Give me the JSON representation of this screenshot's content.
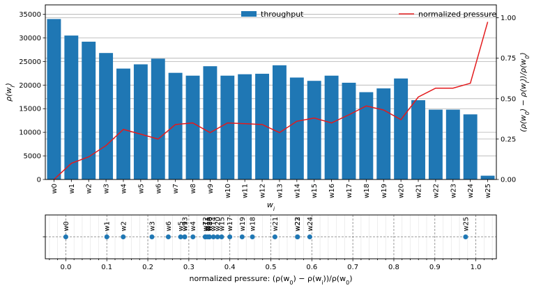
{
  "chart_data": [
    {
      "type": "bar",
      "categories": [
        "w0",
        "w1",
        "w2",
        "w3",
        "w4",
        "w5",
        "w6",
        "w7",
        "w8",
        "w9",
        "w10",
        "w11",
        "w12",
        "w13",
        "w14",
        "w15",
        "w16",
        "w17",
        "w18",
        "w19",
        "w20",
        "w21",
        "w22",
        "w23",
        "w24",
        "w25"
      ],
      "series": [
        {
          "name": "throughput",
          "axis": "left",
          "type": "bar",
          "color": "#1f77b4",
          "values": [
            34000,
            30500,
            29200,
            26800,
            23500,
            24400,
            25600,
            22600,
            22000,
            24000,
            22000,
            22300,
            22400,
            24200,
            21600,
            20900,
            22000,
            20500,
            18500,
            19300,
            21400,
            16800,
            14800,
            14800,
            13800,
            800
          ]
        },
        {
          "name": "normalized pressure",
          "axis": "right",
          "type": "line",
          "color": "#e31a1c",
          "values": [
            0.0,
            0.1,
            0.14,
            0.21,
            0.31,
            0.28,
            0.25,
            0.34,
            0.35,
            0.29,
            0.35,
            0.345,
            0.34,
            0.29,
            0.36,
            0.38,
            0.35,
            0.4,
            0.455,
            0.43,
            0.37,
            0.51,
            0.565,
            0.565,
            0.595,
            0.975
          ]
        }
      ],
      "xlabel": "$w_i$",
      "ylabel": "$\\rho(w_i)$",
      "y2label": "$(\\rho(w_0) - \\rho(w_i))/\\rho(w_0)$",
      "ylim": [
        0,
        37000
      ],
      "y2lim": [
        0,
        1.08
      ],
      "yticks": [
        0,
        5000,
        10000,
        15000,
        20000,
        25000,
        30000,
        35000
      ],
      "y2ticks": [
        0.0,
        0.25,
        0.5,
        0.75,
        1.0
      ],
      "y2ticklabels": [
        "0.00",
        "0.25",
        "0.50",
        "0.75",
        "1.00"
      ],
      "grid": "horizontal",
      "legend": [
        {
          "label": "throughput",
          "position": "top-center"
        },
        {
          "label": "normalized pressure",
          "position": "top-right"
        }
      ]
    },
    {
      "type": "scatter",
      "xlabel": "normalized pressure: $(\\rho(w_0) - \\rho(w_i))/\\rho(w_0)$",
      "xlim": [
        -0.05,
        1.05
      ],
      "xticks": [
        0.0,
        0.1,
        0.2,
        0.3,
        0.4,
        0.5,
        0.6,
        0.7,
        0.8,
        0.9,
        1.0
      ],
      "xticklabels": [
        "0.0",
        "0.1",
        "0.2",
        "0.3",
        "0.4",
        "0.5",
        "0.6",
        "0.7",
        "0.8",
        "0.9",
        "1.0"
      ],
      "grid": "vertical",
      "color": "#1f77b4",
      "points": [
        {
          "label": "w0",
          "x": 0.0
        },
        {
          "label": "w1",
          "x": 0.1
        },
        {
          "label": "w2",
          "x": 0.14
        },
        {
          "label": "w3",
          "x": 0.21
        },
        {
          "label": "w4",
          "x": 0.31
        },
        {
          "label": "w5",
          "x": 0.28
        },
        {
          "label": "w6",
          "x": 0.25
        },
        {
          "label": "w7",
          "x": 0.34
        },
        {
          "label": "w8",
          "x": 0.35
        },
        {
          "label": "w9",
          "x": 0.29
        },
        {
          "label": "w10",
          "x": 0.35
        },
        {
          "label": "w11",
          "x": 0.345
        },
        {
          "label": "w12",
          "x": 0.34
        },
        {
          "label": "w13",
          "x": 0.29
        },
        {
          "label": "w14",
          "x": 0.36
        },
        {
          "label": "w15",
          "x": 0.38
        },
        {
          "label": "w16",
          "x": 0.35
        },
        {
          "label": "w17",
          "x": 0.4
        },
        {
          "label": "w18",
          "x": 0.455
        },
        {
          "label": "w19",
          "x": 0.43
        },
        {
          "label": "w20",
          "x": 0.37
        },
        {
          "label": "w21",
          "x": 0.51
        },
        {
          "label": "w22",
          "x": 0.565
        },
        {
          "label": "w23",
          "x": 0.565
        },
        {
          "label": "w24",
          "x": 0.595
        },
        {
          "label": "w25",
          "x": 0.975
        }
      ]
    }
  ]
}
